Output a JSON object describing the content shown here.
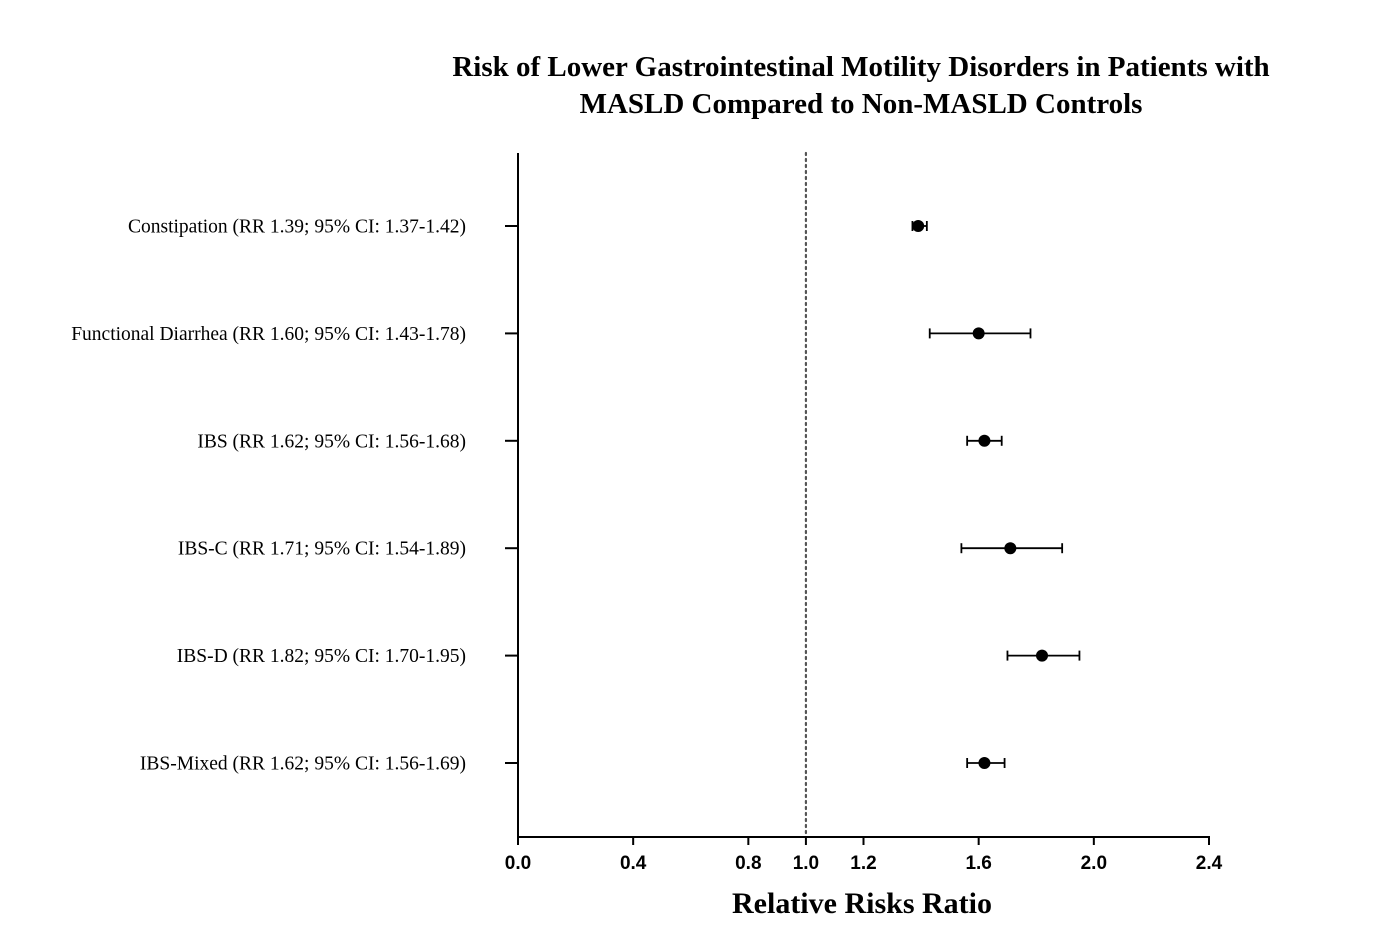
{
  "chart_data": {
    "type": "forest",
    "title_lines": [
      "Risk of Lower Gastrointestinal Motility Disorders in Patients with",
      "MASLD Compared to Non-MASLD Controls"
    ],
    "xlabel": "Relative Risks Ratio",
    "xlim": [
      0.0,
      2.4
    ],
    "xticks": [
      {
        "value": 0.0,
        "label": "0.0"
      },
      {
        "value": 0.4,
        "label": "0.4"
      },
      {
        "value": 0.8,
        "label": "0.8"
      },
      {
        "value": 1.0,
        "label": "1.0"
      },
      {
        "value": 1.2,
        "label": "1.2"
      },
      {
        "value": 1.6,
        "label": "1.6"
      },
      {
        "value": 2.0,
        "label": "2.0"
      },
      {
        "value": 2.4,
        "label": "2.4"
      }
    ],
    "reference_line": 1.0,
    "rows": [
      {
        "label": "Constipation (RR 1.39; 95% CI: 1.37-1.42)",
        "rr": 1.39,
        "ci_low": 1.37,
        "ci_high": 1.42
      },
      {
        "label": "Functional Diarrhea (RR 1.60; 95% CI: 1.43-1.78)",
        "rr": 1.6,
        "ci_low": 1.43,
        "ci_high": 1.78
      },
      {
        "label": "IBS (RR 1.62; 95% CI: 1.56-1.68)",
        "rr": 1.62,
        "ci_low": 1.56,
        "ci_high": 1.68
      },
      {
        "label": "IBS-C (RR 1.71; 95% CI: 1.54-1.89)",
        "rr": 1.71,
        "ci_low": 1.54,
        "ci_high": 1.89
      },
      {
        "label": "IBS-D (RR 1.82; 95% CI: 1.70-1.95)",
        "rr": 1.82,
        "ci_low": 1.7,
        "ci_high": 1.95
      },
      {
        "label": "IBS-Mixed (RR 1.62; 95% CI: 1.56-1.69)",
        "rr": 1.62,
        "ci_low": 1.56,
        "ci_high": 1.69
      }
    ],
    "colors": {
      "axis": "#000000",
      "marker": "#000000",
      "reference_line": "#555555"
    }
  }
}
